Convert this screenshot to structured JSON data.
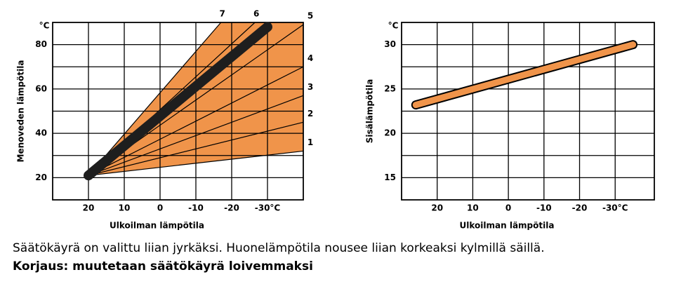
{
  "chart_data": [
    {
      "type": "line",
      "y_unit": "°C",
      "ylabel": "Menoveden lämpötila",
      "xlabel": "Ulkoilman lämpötila",
      "xlim": [
        30,
        -40
      ],
      "ylim": [
        10,
        90
      ],
      "xticks": [
        20,
        10,
        0,
        -10,
        -20,
        {
          "value": -30,
          "label": "-30°C"
        }
      ],
      "yticks": [
        20,
        40,
        60,
        80
      ],
      "ygrid": [
        20,
        30,
        40,
        50,
        60,
        70,
        80
      ],
      "band_color": "#f0944a",
      "series": [
        {
          "name": "1",
          "color": "#000000",
          "x": [
            20,
            -40
          ],
          "values": [
            21,
            32
          ]
        },
        {
          "name": "2",
          "color": "#000000",
          "x": [
            20,
            -40
          ],
          "values": [
            21,
            45
          ]
        },
        {
          "name": "3",
          "color": "#000000",
          "x": [
            20,
            -40
          ],
          "values": [
            21,
            57
          ]
        },
        {
          "name": "4",
          "color": "#000000",
          "x": [
            20,
            -40
          ],
          "values": [
            21,
            70
          ]
        },
        {
          "name": "5",
          "color": "#000000",
          "x": [
            20,
            -40
          ],
          "values": [
            21,
            89
          ]
        },
        {
          "name": "6",
          "color": "#000000",
          "x": [
            20,
            -26.5
          ],
          "values": [
            21,
            90
          ]
        },
        {
          "name": "7",
          "color": "#000000",
          "x": [
            20,
            -17
          ],
          "values": [
            21,
            90
          ]
        }
      ],
      "highlight": {
        "color": "#1e1e1e",
        "x": [
          20,
          -30
        ],
        "values": [
          21,
          88
        ]
      }
    },
    {
      "type": "line",
      "y_unit": "°C",
      "ylabel": "Sisälämpötila",
      "xlabel": "Ulkoilman lämpötila",
      "xlim": [
        30,
        -41
      ],
      "ylim": [
        12.5,
        32.5
      ],
      "xticks": [
        20,
        10,
        0,
        -10,
        -20,
        {
          "value": -30,
          "label": "-30°C"
        }
      ],
      "yticks": [
        15,
        20,
        25,
        30
      ],
      "ygrid": [
        15,
        17.5,
        20,
        22.5,
        25,
        27.5,
        30
      ],
      "series": [],
      "highlight": {
        "color": "#f0944a",
        "x": [
          26,
          -35
        ],
        "values": [
          23.2,
          30
        ]
      }
    }
  ],
  "caption": {
    "line1": "Säätökäyrä on valittu liian jyrkäksi. Huonelämpötila nousee liian korkeaksi kylmillä säillä.",
    "line2": "Korjaus: muutetaan säätökäyrä loivemmaksi"
  }
}
